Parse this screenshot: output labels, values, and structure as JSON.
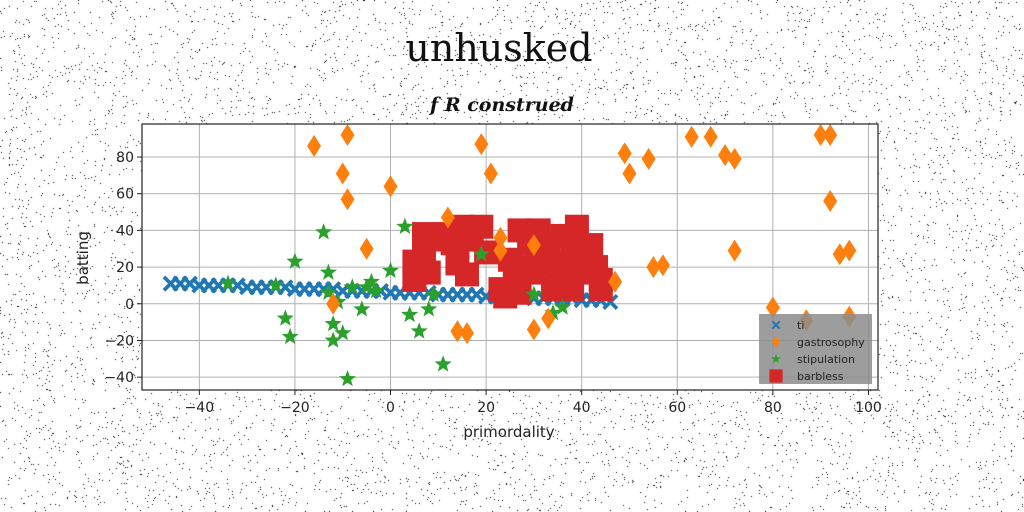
{
  "chart_data": {
    "type": "scatter",
    "title": "unhusked",
    "subtitle": "f R construed",
    "xlabel": "primordality",
    "ylabel": "batting",
    "xlim": [
      -52,
      102
    ],
    "ylim": [
      -47,
      98
    ],
    "xticks": [
      -40,
      -20,
      0,
      20,
      40,
      60,
      80,
      100
    ],
    "yticks": [
      -40,
      -20,
      0,
      20,
      40,
      60,
      80
    ],
    "grid": true,
    "legend_position": "lower-right",
    "series": [
      {
        "name": "ti",
        "marker": "x",
        "color": "#1f77b4",
        "points": [
          [
            -46,
            11
          ],
          [
            -44,
            11
          ],
          [
            -42,
            11
          ],
          [
            -40,
            10
          ],
          [
            -38,
            10
          ],
          [
            -36,
            10
          ],
          [
            -34,
            10
          ],
          [
            -32,
            10
          ],
          [
            -30,
            9
          ],
          [
            -28,
            9
          ],
          [
            -26,
            9
          ],
          [
            -24,
            9
          ],
          [
            -22,
            9
          ],
          [
            -20,
            8
          ],
          [
            -18,
            8
          ],
          [
            -16,
            8
          ],
          [
            -14,
            8
          ],
          [
            -12,
            8
          ],
          [
            -10,
            7
          ],
          [
            -8,
            7
          ],
          [
            -6,
            7
          ],
          [
            -4,
            7
          ],
          [
            -2,
            7
          ],
          [
            0,
            6
          ],
          [
            2,
            6
          ],
          [
            4,
            6
          ],
          [
            6,
            6
          ],
          [
            8,
            6
          ],
          [
            10,
            5
          ],
          [
            12,
            5
          ],
          [
            14,
            5
          ],
          [
            16,
            5
          ],
          [
            18,
            5
          ],
          [
            20,
            4
          ],
          [
            22,
            4
          ],
          [
            24,
            4
          ],
          [
            26,
            4
          ],
          [
            28,
            4
          ],
          [
            30,
            3
          ],
          [
            32,
            3
          ],
          [
            34,
            3
          ],
          [
            36,
            3
          ],
          [
            38,
            3
          ],
          [
            40,
            2
          ],
          [
            42,
            2
          ],
          [
            44,
            2
          ],
          [
            46,
            1
          ]
        ]
      },
      {
        "name": "gastrosophy",
        "marker": "diamond",
        "color": "#ff7f0e",
        "points": [
          [
            -16,
            86
          ],
          [
            -9,
            92
          ],
          [
            -10,
            71
          ],
          [
            -9,
            57
          ],
          [
            -5,
            30
          ],
          [
            0,
            64
          ],
          [
            -12,
            0
          ],
          [
            12,
            47
          ],
          [
            14,
            -15
          ],
          [
            16,
            -16
          ],
          [
            19,
            87
          ],
          [
            21,
            71
          ],
          [
            23,
            36
          ],
          [
            23,
            29
          ],
          [
            30,
            -14
          ],
          [
            30,
            32
          ],
          [
            33,
            -8
          ],
          [
            47,
            12
          ],
          [
            49,
            82
          ],
          [
            50,
            71
          ],
          [
            54,
            79
          ],
          [
            55,
            20
          ],
          [
            57,
            21
          ],
          [
            63,
            91
          ],
          [
            67,
            91
          ],
          [
            70,
            81
          ],
          [
            72,
            79
          ],
          [
            72,
            29
          ],
          [
            80,
            -2
          ],
          [
            87,
            -9
          ],
          [
            90,
            92
          ],
          [
            92,
            92
          ],
          [
            92,
            56
          ],
          [
            94,
            27
          ],
          [
            96,
            29
          ],
          [
            96,
            -7
          ]
        ]
      },
      {
        "name": "stipulation",
        "marker": "star",
        "color": "#2ca02c",
        "points": [
          [
            -34,
            11
          ],
          [
            -24,
            10
          ],
          [
            -22,
            -8
          ],
          [
            -21,
            -18
          ],
          [
            -20,
            23
          ],
          [
            -14,
            39
          ],
          [
            -13,
            17
          ],
          [
            -13,
            6
          ],
          [
            -12,
            -11
          ],
          [
            -12,
            -20
          ],
          [
            -11,
            1
          ],
          [
            -10,
            -16
          ],
          [
            -9,
            -41
          ],
          [
            -8,
            9
          ],
          [
            -6,
            -3
          ],
          [
            -5,
            9
          ],
          [
            -4,
            12
          ],
          [
            -3,
            7
          ],
          [
            0,
            18
          ],
          [
            3,
            42
          ],
          [
            4,
            -6
          ],
          [
            6,
            -15
          ],
          [
            8,
            -3
          ],
          [
            9,
            5
          ],
          [
            11,
            -33
          ],
          [
            19,
            27
          ],
          [
            30,
            5
          ],
          [
            34,
            -5
          ],
          [
            36,
            -2
          ]
        ]
      },
      {
        "name": "barbless",
        "marker": "square",
        "color": "#d62728",
        "points": [
          [
            5,
            13
          ],
          [
            5,
            23
          ],
          [
            7,
            38
          ],
          [
            7,
            26
          ],
          [
            8,
            17
          ],
          [
            9,
            35
          ],
          [
            12,
            38
          ],
          [
            13,
            33
          ],
          [
            14,
            22
          ],
          [
            15,
            42
          ],
          [
            16,
            16
          ],
          [
            17,
            35
          ],
          [
            19,
            42
          ],
          [
            20,
            28
          ],
          [
            23,
            8
          ],
          [
            24,
            4
          ],
          [
            25,
            24
          ],
          [
            26,
            17
          ],
          [
            27,
            40
          ],
          [
            27,
            6
          ],
          [
            28,
            20
          ],
          [
            29,
            33
          ],
          [
            30,
            17
          ],
          [
            31,
            40
          ],
          [
            31,
            22
          ],
          [
            33,
            32
          ],
          [
            34,
            22
          ],
          [
            34,
            8
          ],
          [
            35,
            12
          ],
          [
            36,
            37
          ],
          [
            36,
            20
          ],
          [
            38,
            8
          ],
          [
            38,
            32
          ],
          [
            39,
            17
          ],
          [
            39,
            42
          ],
          [
            40,
            22
          ],
          [
            42,
            32
          ],
          [
            43,
            20
          ],
          [
            44,
            8
          ],
          [
            44,
            13
          ]
        ]
      }
    ]
  }
}
